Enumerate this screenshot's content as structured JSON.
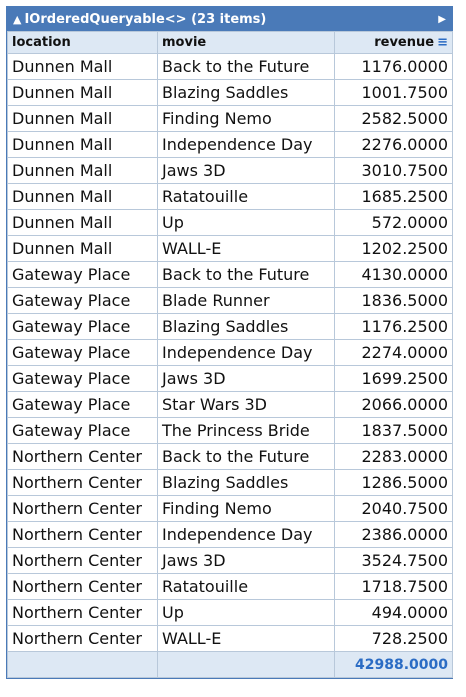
{
  "grid": {
    "title": "IOrderedQueryable<> (23 items)",
    "collapse_icon": "triangle-up-icon",
    "expand_icon": "triangle-right-icon",
    "columns": [
      "location",
      "movie",
      "revenue"
    ],
    "sort_icon": "≡",
    "rows": [
      [
        "Dunnen Mall",
        "Back to the Future",
        "1176.0000"
      ],
      [
        "Dunnen Mall",
        "Blazing Saddles",
        "1001.7500"
      ],
      [
        "Dunnen Mall",
        "Finding Nemo",
        "2582.5000"
      ],
      [
        "Dunnen Mall",
        "Independence Day",
        "2276.0000"
      ],
      [
        "Dunnen Mall",
        "Jaws 3D",
        "3010.7500"
      ],
      [
        "Dunnen Mall",
        "Ratatouille",
        "1685.2500"
      ],
      [
        "Dunnen Mall",
        "Up",
        "572.0000"
      ],
      [
        "Dunnen Mall",
        "WALL-E",
        "1202.2500"
      ],
      [
        "Gateway Place",
        "Back to the Future",
        "4130.0000"
      ],
      [
        "Gateway Place",
        "Blade Runner",
        "1836.5000"
      ],
      [
        "Gateway Place",
        "Blazing Saddles",
        "1176.2500"
      ],
      [
        "Gateway Place",
        "Independence Day",
        "2274.0000"
      ],
      [
        "Gateway Place",
        "Jaws 3D",
        "1699.2500"
      ],
      [
        "Gateway Place",
        "Star Wars 3D",
        "2066.0000"
      ],
      [
        "Gateway Place",
        "The Princess Bride",
        "1837.5000"
      ],
      [
        "Northern Center",
        "Back to the Future",
        "2283.0000"
      ],
      [
        "Northern Center",
        "Blazing Saddles",
        "1286.5000"
      ],
      [
        "Northern Center",
        "Finding Nemo",
        "2040.7500"
      ],
      [
        "Northern Center",
        "Independence Day",
        "2386.0000"
      ],
      [
        "Northern Center",
        "Jaws 3D",
        "3524.7500"
      ],
      [
        "Northern Center",
        "Ratatouille",
        "1718.7500"
      ],
      [
        "Northern Center",
        "Up",
        "494.0000"
      ],
      [
        "Northern Center",
        "WALL-E",
        "728.2500"
      ]
    ],
    "total": "42988.0000",
    "colors": {
      "header_bar": "#4a7ab8",
      "header_row": "#dde8f4",
      "total_text": "#2b6cc4"
    }
  }
}
